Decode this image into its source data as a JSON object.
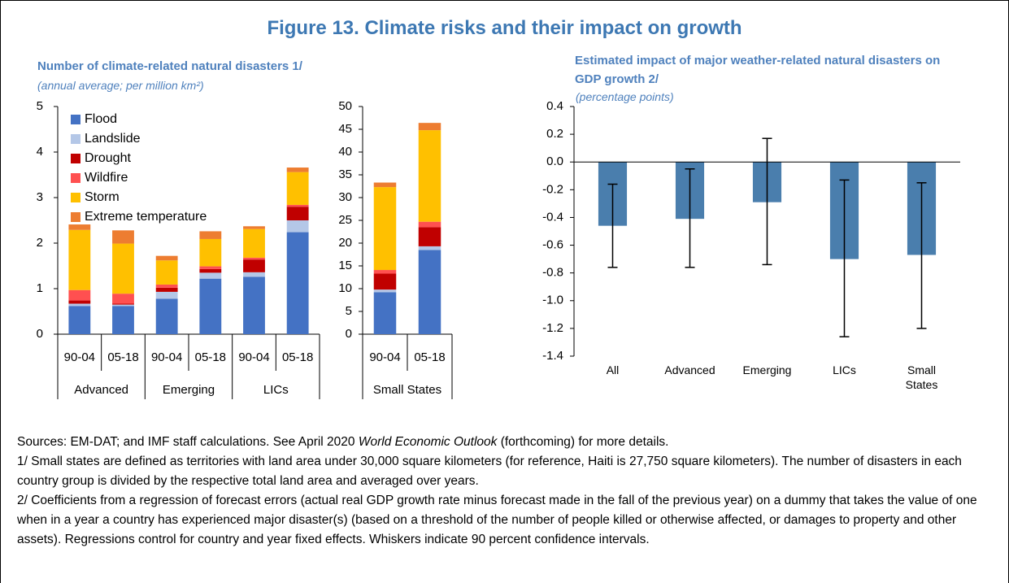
{
  "title": "Figure 13. Climate risks and their impact on growth",
  "chart_data": [
    {
      "type": "stacked_bar",
      "title": "Number of climate-related natural disasters 1/",
      "subtitle": "(annual average; per million km²)",
      "groups": [
        {
          "name": "Advanced",
          "categories": [
            "90-04",
            "05-18"
          ]
        },
        {
          "name": "Emerging",
          "categories": [
            "90-04",
            "05-18"
          ]
        },
        {
          "name": "LICs",
          "categories": [
            "90-04",
            "05-18"
          ]
        }
      ],
      "series": [
        {
          "name": "Flood",
          "color": "#4472c4",
          "values": [
            0.62,
            0.62,
            0.78,
            1.22,
            1.26,
            2.24
          ]
        },
        {
          "name": "Landslide",
          "color": "#b4c7e7",
          "values": [
            0.05,
            0.03,
            0.15,
            0.13,
            0.1,
            0.26
          ]
        },
        {
          "name": "Drought",
          "color": "#c00000",
          "values": [
            0.07,
            0.02,
            0.09,
            0.08,
            0.28,
            0.3
          ]
        },
        {
          "name": "Wildfire",
          "color": "#ff5050",
          "values": [
            0.23,
            0.22,
            0.07,
            0.06,
            0.04,
            0.04
          ]
        },
        {
          "name": "Storm",
          "color": "#ffc000",
          "values": [
            1.32,
            1.1,
            0.53,
            0.6,
            0.63,
            0.72
          ]
        },
        {
          "name": "Extreme temperature",
          "color": "#ed7d31",
          "values": [
            0.12,
            0.29,
            0.1,
            0.17,
            0.06,
            0.1
          ]
        }
      ],
      "ylim": [
        0,
        5
      ],
      "yticks": [
        0,
        1,
        2,
        3,
        4,
        5
      ],
      "legend": "upper left"
    },
    {
      "type": "stacked_bar",
      "groups": [
        {
          "name": "Small States",
          "categories": [
            "90-04",
            "05-18"
          ]
        }
      ],
      "series": [
        {
          "color": "#4472c4",
          "values": [
            9.2,
            18.5
          ]
        },
        {
          "color": "#b4c7e7",
          "values": [
            0.6,
            0.8
          ]
        },
        {
          "color": "#c00000",
          "values": [
            3.5,
            4.2
          ]
        },
        {
          "color": "#ff5050",
          "values": [
            0.8,
            1.2
          ]
        },
        {
          "color": "#ffc000",
          "values": [
            18.2,
            20.1
          ]
        },
        {
          "color": "#ed7d31",
          "values": [
            1.0,
            1.6
          ]
        }
      ],
      "ylim": [
        0,
        50
      ],
      "yticks": [
        0,
        5,
        10,
        15,
        20,
        25,
        30,
        35,
        40,
        45,
        50
      ]
    },
    {
      "type": "bar_error",
      "title": "Estimated impact of major weather-related natural disasters on GDP growth 2/",
      "subtitle": "(percentage points)",
      "categories": [
        "All",
        "Advanced",
        "Emerging",
        "LICs",
        "Small States"
      ],
      "values": [
        -0.46,
        -0.41,
        -0.29,
        -0.7,
        -0.67
      ],
      "ci_low": [
        -0.76,
        -0.76,
        -0.74,
        -1.26,
        -1.2
      ],
      "ci_high": [
        -0.16,
        -0.05,
        0.17,
        -0.13,
        -0.15
      ],
      "color": "#4a7ead",
      "ylim": [
        -1.4,
        0.4
      ],
      "yticks": [
        -1.4,
        -1.2,
        {
          "value": -1,
          "label": "-1.0"
        },
        -0.8,
        -0.6,
        -0.4,
        -0.2,
        {
          "value": 0,
          "label": "0.0"
        },
        0.2,
        0.4
      ]
    }
  ],
  "sources": [
    "Sources: EM-DAT; and IMF staff calculations.  See April 2020 ",
    "World Economic Outlook",
    " (forthcoming) for more details."
  ],
  "footnotes": [
    "1/ Small states are defined as territories with land area under 30,000 square kilometers (for reference, Haiti is 27,750 square kilometers). The number of disasters in each country group is divided by the respective total land area and averaged over years.",
    "2/ Coefficients from a regression of forecast errors (actual real GDP growth rate minus forecast made in the fall of the previous year) on a dummy that takes the value of one when in a year a country has experienced major disaster(s) (based on a threshold of the number of people killed or otherwise affected, or damages to property and other assets). Regressions control for country and year fixed effects. Whiskers indicate 90 percent confidence intervals."
  ]
}
